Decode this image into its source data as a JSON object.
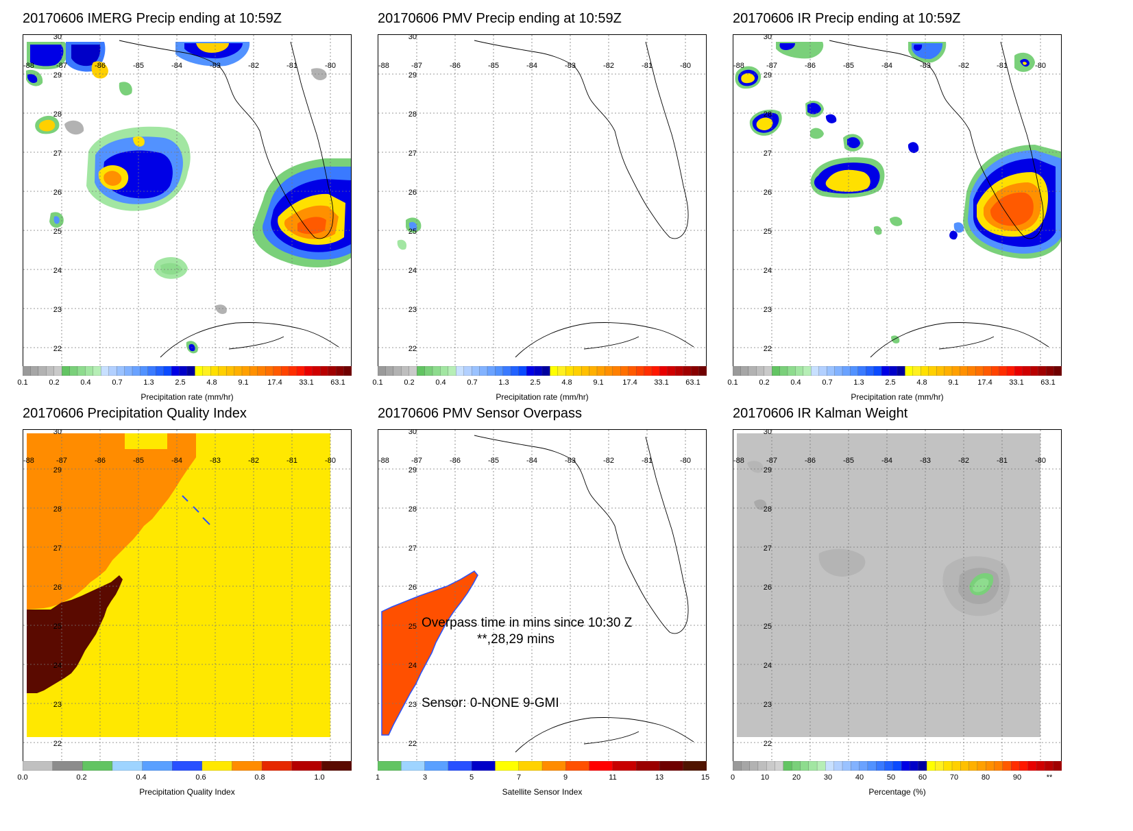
{
  "panels": [
    {
      "id": "imerg",
      "title": "20170606 IMERG Precip ending at 10:59Z",
      "colorbar": {
        "label": "Precipitation rate (mm/hr)",
        "ticks": [
          "0.1",
          "0.2",
          "0.4",
          "0.7",
          "1.3",
          "2.5",
          "4.8",
          "9.1",
          "17.4",
          "33.1",
          "63.1"
        ],
        "colors": [
          "#9a9a9a",
          "#a6a6a6",
          "#b2b2b2",
          "#bebebe",
          "#cacaca",
          "#62c462",
          "#7ad07a",
          "#8edc8e",
          "#a2e6a2",
          "#b6eeb6",
          "#c8e0ff",
          "#b2d0ff",
          "#9ac2ff",
          "#82b2ff",
          "#6aa2ff",
          "#5292ff",
          "#3a7aff",
          "#2262ff",
          "#0a4aff",
          "#0000e6",
          "#0000c8",
          "#00009e",
          "#ffff00",
          "#fff020",
          "#ffe000",
          "#ffd000",
          "#ffc000",
          "#ffb000",
          "#ffa000",
          "#ff9000",
          "#ff8000",
          "#ff7000",
          "#ff5a00",
          "#ff4400",
          "#ff2e00",
          "#ff1800",
          "#e80000",
          "#d00000",
          "#b80000",
          "#a00000",
          "#880000",
          "#700000"
        ]
      },
      "lon_labels": [
        "-88",
        "-87",
        "-86",
        "-85",
        "-84",
        "-83",
        "-82",
        "-81",
        "-80"
      ],
      "lat_labels": [
        "30",
        "29",
        "28",
        "27",
        "26",
        "25",
        "24",
        "23",
        "22"
      ]
    },
    {
      "id": "pmv",
      "title": "20170606 PMV Precip ending at 10:59Z",
      "colorbar": {
        "label": "Precipitation rate (mm/hr)",
        "ticks": [
          "0.1",
          "0.2",
          "0.4",
          "0.7",
          "1.3",
          "2.5",
          "4.8",
          "9.1",
          "17.4",
          "33.1",
          "63.1"
        ]
      },
      "lon_labels": [
        "-88",
        "-87",
        "-86",
        "-85",
        "-84",
        "-83",
        "-82",
        "-81",
        "-80"
      ],
      "lat_labels": [
        "30",
        "29",
        "28",
        "27",
        "26",
        "25",
        "24",
        "23",
        "22"
      ]
    },
    {
      "id": "ir",
      "title": "20170606 IR Precip ending at 10:59Z",
      "colorbar": {
        "label": "Precipitation rate (mm/hr)",
        "ticks": [
          "0.1",
          "0.2",
          "0.4",
          "0.7",
          "1.3",
          "2.5",
          "4.8",
          "9.1",
          "17.4",
          "33.1",
          "63.1"
        ]
      },
      "lon_labels": [
        "-88",
        "-87",
        "-86",
        "-85",
        "-84",
        "-83",
        "-82",
        "-81",
        "-80"
      ],
      "lat_labels": [
        "30",
        "29",
        "28",
        "27",
        "26",
        "25",
        "24",
        "23",
        "22"
      ]
    },
    {
      "id": "pqi",
      "title": "20170606 Precipitation Quality Index",
      "colorbar": {
        "label": "Precipitation Quality Index",
        "ticks": [
          "0.0",
          "0.2",
          "0.4",
          "0.6",
          "0.8",
          "1.0"
        ],
        "colors": [
          "#c0c0c0",
          "#8c8c8c",
          "#62c462",
          "#9ed4ff",
          "#5aa0ff",
          "#2850ff",
          "#ffe800",
          "#ff8c00",
          "#e62800",
          "#b40000",
          "#5a0a00"
        ]
      },
      "lon_labels": [
        "-88",
        "-87",
        "-86",
        "-85",
        "-84",
        "-83",
        "-82",
        "-81",
        "-80"
      ],
      "lat_labels": [
        "30",
        "29",
        "28",
        "27",
        "26",
        "25",
        "24",
        "23",
        "22"
      ]
    },
    {
      "id": "overpass",
      "title": "20170606 PMV Sensor Overpass",
      "colorbar": {
        "label": "Satellite Sensor Index",
        "ticks": [
          "1",
          "3",
          "5",
          "7",
          "9",
          "11",
          "13",
          "15"
        ],
        "colors": [
          "#62c462",
          "#9ed4ff",
          "#5aa0ff",
          "#2850ff",
          "#0000c8",
          "#ffff00",
          "#ffd200",
          "#ff8c00",
          "#ff5000",
          "#ff0000",
          "#c80000",
          "#9a0000",
          "#6e0000",
          "#501400"
        ]
      },
      "annotations": [
        "Overpass time in mins since 10:30 Z",
        "**,28,29 mins",
        "Sensor:   0-NONE  9-GMI"
      ],
      "lon_labels": [
        "-88",
        "-87",
        "-86",
        "-85",
        "-84",
        "-83",
        "-82",
        "-81",
        "-80"
      ],
      "lat_labels": [
        "30",
        "29",
        "28",
        "27",
        "26",
        "25",
        "24",
        "23",
        "22"
      ]
    },
    {
      "id": "kalman",
      "title": "20170606 IR Kalman Weight",
      "colorbar": {
        "label": "Percentage (%)",
        "ticks": [
          "0",
          "10",
          "20",
          "30",
          "40",
          "50",
          "60",
          "70",
          "80",
          "90",
          "**"
        ],
        "colors": [
          "#9a9a9a",
          "#a6a6a6",
          "#b2b2b2",
          "#bebebe",
          "#cacaca",
          "#d2d2d2",
          "#62c462",
          "#7ad07a",
          "#8edc8e",
          "#a2e6a2",
          "#b6eeb6",
          "#c8e0ff",
          "#b2d0ff",
          "#9ac2ff",
          "#82b2ff",
          "#6aa2ff",
          "#5292ff",
          "#3a7aff",
          "#2262ff",
          "#0a4aff",
          "#0000e6",
          "#0000c8",
          "#00009e",
          "#ffff00",
          "#fff020",
          "#ffe000",
          "#ffd000",
          "#ffc000",
          "#ffb000",
          "#ffa000",
          "#ff9000",
          "#ff8000",
          "#ff5a00",
          "#ff2e00",
          "#ff1800",
          "#e80000",
          "#d00000",
          "#b80000",
          "#a00000"
        ]
      },
      "lon_labels": [
        "-88",
        "-87",
        "-86",
        "-85",
        "-84",
        "-83",
        "-82",
        "-81",
        "-80"
      ],
      "lat_labels": [
        "30",
        "29",
        "28",
        "27",
        "26",
        "25",
        "24",
        "23",
        "22"
      ]
    }
  ]
}
